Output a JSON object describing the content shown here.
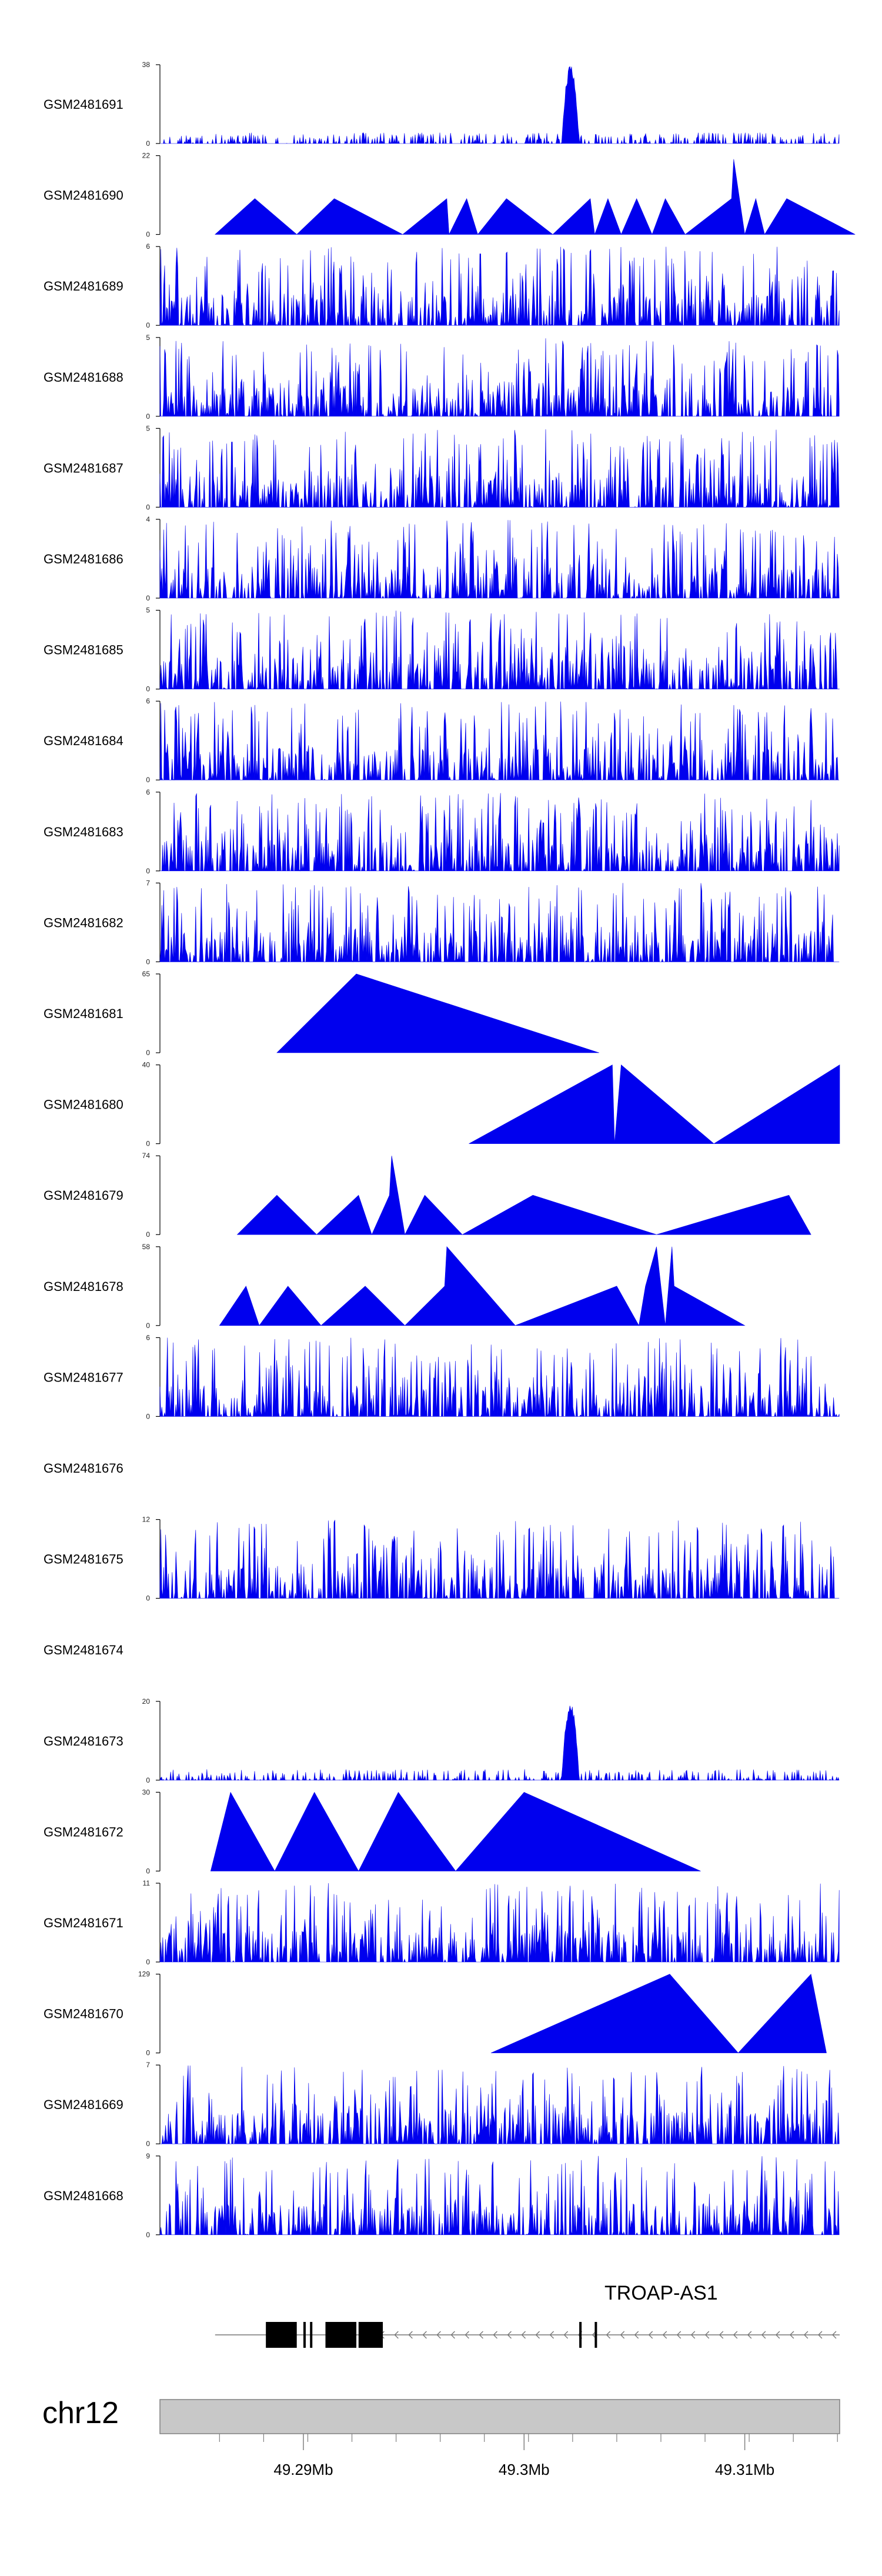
{
  "chart_data": {
    "type": "area",
    "title": "",
    "chromosome": "chr12",
    "gene_label": "TROAP-AS1",
    "x_axis": {
      "ticks": [
        49.29,
        49.3,
        49.31
      ],
      "tick_labels": [
        "49.29Mb",
        "49.3Mb",
        "49.31Mb"
      ]
    },
    "tracks": [
      {
        "name": "GSM2481691",
        "ymax": 38,
        "ymin_label": "0",
        "ymax_label": "38",
        "style": "noise",
        "peaks": [
          [
            49.3021,
            38,
            0.0004
          ]
        ]
      },
      {
        "name": "GSM2481690",
        "ymax": 22,
        "ymin_label": "0",
        "ymax_label": "22",
        "style": "tri",
        "points": [
          [
            49.286,
            0
          ],
          [
            49.2878,
            10
          ],
          [
            49.2897,
            0
          ],
          [
            49.2914,
            10
          ],
          [
            49.2945,
            0
          ],
          [
            49.2965,
            10
          ],
          [
            49.2966,
            0
          ],
          [
            49.2974,
            10
          ],
          [
            49.2979,
            0
          ],
          [
            49.2992,
            10
          ],
          [
            49.3013,
            0
          ],
          [
            49.303,
            10
          ],
          [
            49.3032,
            0
          ],
          [
            49.3038,
            10
          ],
          [
            49.3044,
            0
          ],
          [
            49.3051,
            10
          ],
          [
            49.3058,
            0
          ],
          [
            49.3064,
            10
          ],
          [
            49.3073,
            0
          ],
          [
            49.3094,
            10
          ],
          [
            49.3095,
            21
          ],
          [
            49.31,
            0
          ],
          [
            49.3105,
            10
          ],
          [
            49.3109,
            0
          ],
          [
            49.3119,
            10
          ],
          [
            49.315,
            0
          ]
        ]
      },
      {
        "name": "GSM2481689",
        "ymax": 6,
        "ymin_label": "0",
        "ymax_label": "6",
        "style": "spike"
      },
      {
        "name": "GSM2481688",
        "ymax": 5,
        "ymin_label": "0",
        "ymax_label": "5",
        "style": "spike"
      },
      {
        "name": "GSM2481687",
        "ymax": 5,
        "ymin_label": "0",
        "ymax_label": "5",
        "style": "spike"
      },
      {
        "name": "GSM2481686",
        "ymax": 4,
        "ymin_label": "0",
        "ymax_label": "4",
        "style": "spike"
      },
      {
        "name": "GSM2481685",
        "ymax": 5,
        "ymin_label": "0",
        "ymax_label": "5",
        "style": "spike"
      },
      {
        "name": "GSM2481684",
        "ymax": 6,
        "ymin_label": "0",
        "ymax_label": "6",
        "style": "spike"
      },
      {
        "name": "GSM2481683",
        "ymax": 6,
        "ymin_label": "0",
        "ymax_label": "6",
        "style": "spike"
      },
      {
        "name": "GSM2481682",
        "ymax": 7,
        "ymin_label": "0",
        "ymax_label": "7",
        "style": "spike"
      },
      {
        "name": "GSM2481681",
        "ymax": 65,
        "ymin_label": "0",
        "ymax_label": "65",
        "style": "tri",
        "points": [
          [
            49.2888,
            0
          ],
          [
            49.2924,
            65
          ],
          [
            49.3034,
            0
          ]
        ]
      },
      {
        "name": "GSM2481680",
        "ymax": 40,
        "ymin_label": "0",
        "ymax_label": "40",
        "style": "tri",
        "points": [
          [
            49.2975,
            0
          ],
          [
            49.304,
            40
          ],
          [
            49.3041,
            0
          ],
          [
            49.3044,
            40
          ],
          [
            49.3086,
            0
          ],
          [
            49.3143,
            40
          ],
          [
            49.3143,
            0
          ]
        ]
      },
      {
        "name": "GSM2481679",
        "ymax": 74,
        "ymin_label": "0",
        "ymax_label": "74",
        "style": "tri",
        "points": [
          [
            49.287,
            0
          ],
          [
            49.2888,
            37
          ],
          [
            49.2906,
            0
          ],
          [
            49.2925,
            37
          ],
          [
            49.2931,
            0
          ],
          [
            49.2939,
            37
          ],
          [
            49.294,
            74
          ],
          [
            49.2946,
            0
          ],
          [
            49.2955,
            37
          ],
          [
            49.2972,
            0
          ],
          [
            49.3004,
            37
          ],
          [
            49.306,
            0
          ],
          [
            49.312,
            37
          ],
          [
            49.313,
            0
          ]
        ]
      },
      {
        "name": "GSM2481678",
        "ymax": 58,
        "ymin_label": "0",
        "ymax_label": "58",
        "style": "tri",
        "points": [
          [
            49.2862,
            0
          ],
          [
            49.2874,
            29
          ],
          [
            49.288,
            0
          ],
          [
            49.2893,
            29
          ],
          [
            49.2908,
            0
          ],
          [
            49.2928,
            29
          ],
          [
            49.2946,
            0
          ],
          [
            49.2964,
            29
          ],
          [
            49.2965,
            58
          ],
          [
            49.2996,
            0
          ],
          [
            49.3042,
            29
          ],
          [
            49.3052,
            0
          ],
          [
            49.3055,
            29
          ],
          [
            49.306,
            58
          ],
          [
            49.3064,
            0
          ],
          [
            49.3067,
            58
          ],
          [
            49.3068,
            29
          ],
          [
            49.31,
            0
          ]
        ]
      },
      {
        "name": "GSM2481677",
        "ymax": 6,
        "ymin_label": "0",
        "ymax_label": "6",
        "style": "spike"
      },
      {
        "name": "GSM2481676",
        "style": "empty"
      },
      {
        "name": "GSM2481675",
        "ymax": 12,
        "ymin_label": "0",
        "ymax_label": "12",
        "style": "spike"
      },
      {
        "name": "GSM2481674",
        "style": "empty"
      },
      {
        "name": "GSM2481673",
        "ymax": 20,
        "ymin_label": "0",
        "ymax_label": "20",
        "style": "noise",
        "peaks": [
          [
            49.3021,
            20,
            0.0004
          ]
        ]
      },
      {
        "name": "GSM2481672",
        "ymax": 30,
        "ymin_label": "0",
        "ymax_label": "30",
        "style": "tri",
        "points": [
          [
            49.2858,
            0
          ],
          [
            49.2867,
            30
          ],
          [
            49.2887,
            0
          ],
          [
            49.2905,
            30
          ],
          [
            49.2925,
            0
          ],
          [
            49.2943,
            30
          ],
          [
            49.2969,
            0
          ],
          [
            49.3,
            30
          ],
          [
            49.308,
            0
          ]
        ]
      },
      {
        "name": "GSM2481671",
        "ymax": 11,
        "ymin_label": "0",
        "ymax_label": "11",
        "style": "spike"
      },
      {
        "name": "GSM2481670",
        "ymax": 129,
        "ymin_label": "0",
        "ymax_label": "129",
        "style": "tri",
        "points": [
          [
            49.2985,
            0
          ],
          [
            49.3066,
            129
          ],
          [
            49.3097,
            0
          ],
          [
            49.313,
            129
          ],
          [
            49.3137,
            0
          ]
        ]
      },
      {
        "name": "GSM2481669",
        "ymax": 7,
        "ymin_label": "0",
        "ymax_label": "7",
        "style": "spike"
      },
      {
        "name": "GSM2481668",
        "ymax": 9,
        "ymin_label": "0",
        "ymax_label": "9",
        "style": "spike"
      }
    ]
  },
  "colors": {
    "signal": "#0000ee",
    "axis": "#000000",
    "gene": "#000000",
    "ideogram": "#c8c8c8",
    "ideogram_border": "#808080"
  }
}
